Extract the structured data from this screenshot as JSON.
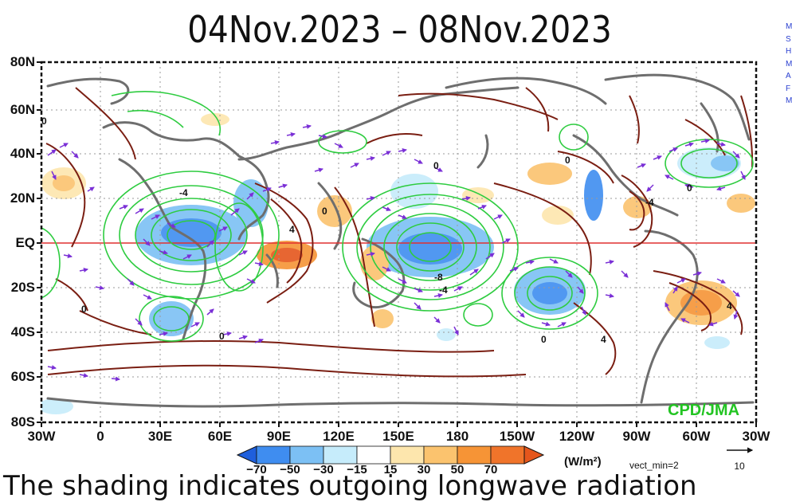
{
  "title": "04Nov.2023  –  08Nov.2023",
  "y_axis": [
    "80N",
    "60N",
    "40N",
    "20N",
    "EQ",
    "20S",
    "40S",
    "60S",
    "80S"
  ],
  "x_axis": [
    "30W",
    "0",
    "30E",
    "60E",
    "90E",
    "120E",
    "150E",
    "180",
    "150W",
    "120W",
    "90W",
    "60W",
    "30W"
  ],
  "colorbar": {
    "labels": [
      "−70",
      "−50",
      "−30",
      "−15",
      "15",
      "30",
      "50",
      "70"
    ],
    "colors": [
      "#1f5fdc",
      "#3f8df0",
      "#7cc0f4",
      "#c6ecfb",
      "#ffffff",
      "#fde6ad",
      "#fbc36e",
      "#f69436",
      "#e5561c"
    ],
    "units": "(W/m²)",
    "vect_min": "vect_min=2",
    "vector_ref": "10"
  },
  "contour_labels": [
    "0",
    "0",
    "-4",
    "4",
    "0",
    "-8",
    "-4",
    "0",
    "0",
    "4",
    "0",
    "4",
    "0",
    "0",
    "-4"
  ],
  "credit": "CPD/JMA",
  "side_links": [
    "M",
    "S",
    "H",
    "M",
    "A",
    "F",
    "M"
  ],
  "caption": "The shading indicates outgoing longwave radiation",
  "colors": {
    "positive_contour": "#7a1e12",
    "negative_contour": "#2ecc40",
    "vector": "#7a2fd6",
    "vector_alt": "#2a7fe0",
    "coastline": "#6e6e6e",
    "equator": "#e03030",
    "credit": "#22c422"
  }
}
